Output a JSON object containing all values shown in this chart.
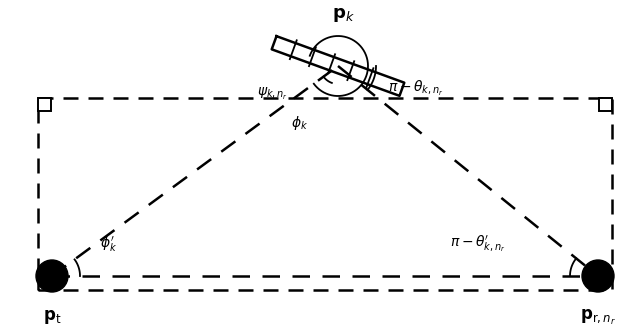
{
  "fig_width": 6.4,
  "fig_height": 3.28,
  "dpi": 100,
  "bg_color": "#ffffff",
  "label_pt": "$\\mathbf{p}_{\\mathrm{t}}$",
  "label_pr": "$\\mathbf{p}_{\\mathrm{r},n_r}$",
  "label_pk": "$\\mathbf{p}_k$",
  "label_phi_k": "$\\phi_k$",
  "label_phi_prime": "$\\phi^{\\prime}_k$",
  "label_psi": "$\\psi_{k,n_r}$",
  "label_theta_k": "$\\pi - \\theta_{k,n_r}$",
  "label_theta_prime": "$\\pi - \\theta^{\\prime}_{k,n_r}$"
}
